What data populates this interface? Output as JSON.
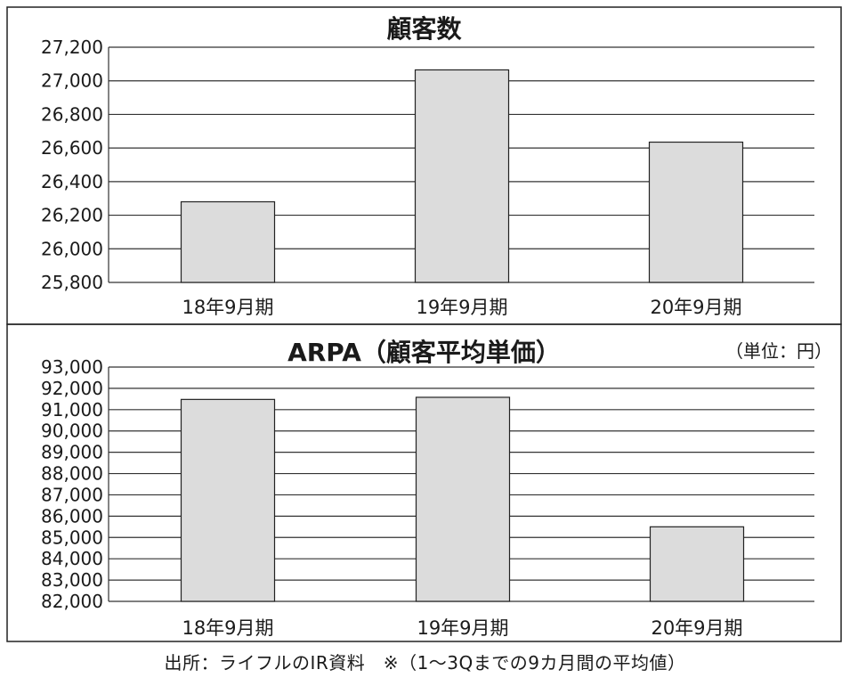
{
  "chart_data": [
    {
      "type": "bar",
      "title": "顧客数",
      "unit_note": "",
      "categories": [
        "18年9月期",
        "19年9月期",
        "20年9月期"
      ],
      "values": [
        26280,
        27065,
        26635
      ],
      "ylim": [
        25800,
        27200
      ],
      "yticks": [
        25800,
        26000,
        26200,
        26400,
        26600,
        26800,
        27000,
        27200
      ],
      "ytick_labels": [
        "25,800",
        "26,000",
        "26,200",
        "26,400",
        "26,600",
        "26,800",
        "27,000",
        "27,200"
      ],
      "grid": true,
      "bar_color": "#dcdcdc"
    },
    {
      "type": "bar",
      "title": "ARPA（顧客平均単価）",
      "unit_note": "（単位：円）",
      "categories": [
        "18年9月期",
        "19年9月期",
        "20年9月期"
      ],
      "values": [
        91480,
        91580,
        85500
      ],
      "ylim": [
        82000,
        93000
      ],
      "yticks": [
        82000,
        83000,
        84000,
        85000,
        86000,
        87000,
        88000,
        89000,
        90000,
        91000,
        92000,
        93000
      ],
      "ytick_labels": [
        "82,000",
        "83,000",
        "84,000",
        "85,000",
        "86,000",
        "87,000",
        "88,000",
        "89,000",
        "90,000",
        "91,000",
        "92,000",
        "93,000"
      ],
      "grid": true,
      "bar_color": "#dcdcdc"
    }
  ],
  "footer": {
    "source": "出所：ライフルのIR資料　※（1～3Qまでの9カ月間の平均値）"
  }
}
